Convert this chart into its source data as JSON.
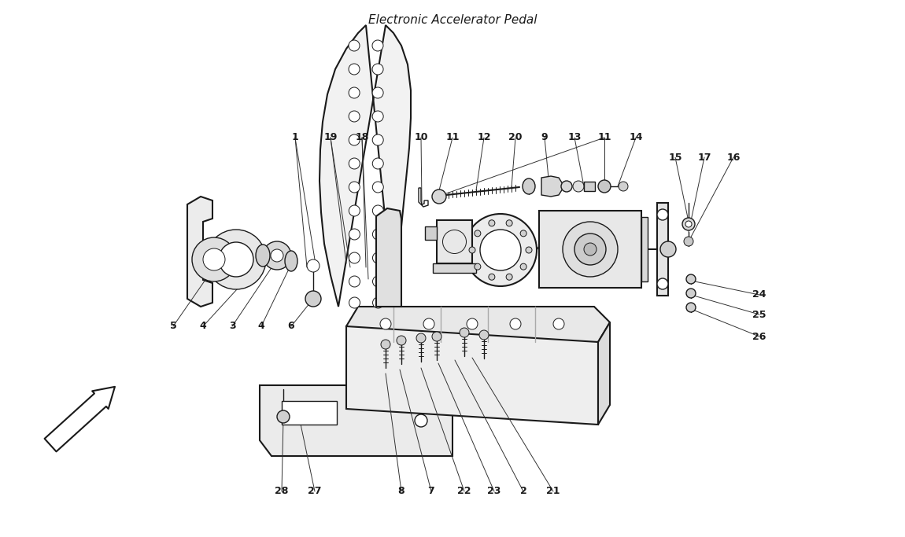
{
  "title": "Electronic Accelerator Pedal",
  "bg_color": "#ffffff",
  "line_color": "#1a1a1a",
  "fig_width": 11.5,
  "fig_height": 6.83,
  "dpi": 100
}
